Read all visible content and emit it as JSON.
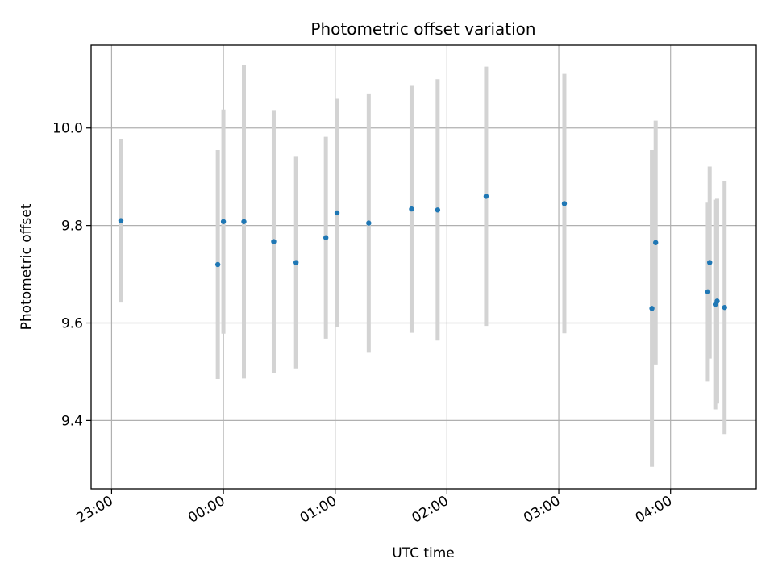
{
  "chart_data": {
    "type": "scatter",
    "title": "Photometric offset variation",
    "xlabel": "UTC time",
    "ylabel": "Photometric offset",
    "grid": true,
    "legend": "none",
    "x_ticks": [
      "23:00",
      "00:00",
      "01:00",
      "02:00",
      "03:00",
      "04:00"
    ],
    "y_ticks": [
      "9.4",
      "9.6",
      "9.8",
      "10.0"
    ],
    "xlim": [
      "22:49",
      "04:46"
    ],
    "ylim": [
      9.26,
      10.17
    ],
    "colors": {
      "point": "#1f77b4",
      "errorbar": "#d3d3d3",
      "grid": "#b0b0b0"
    },
    "series": [
      {
        "points": [
          {
            "t": "23:05",
            "y": 9.81,
            "err": 0.168
          },
          {
            "t": "23:57",
            "y": 9.72,
            "err": 0.235
          },
          {
            "t": "00:00",
            "y": 9.808,
            "err": 0.23
          },
          {
            "t": "00:11",
            "y": 9.808,
            "err": 0.322
          },
          {
            "t": "00:27",
            "y": 9.767,
            "err": 0.27
          },
          {
            "t": "00:39",
            "y": 9.724,
            "err": 0.217
          },
          {
            "t": "00:55",
            "y": 9.775,
            "err": 0.207
          },
          {
            "t": "01:01",
            "y": 9.826,
            "err": 0.234
          },
          {
            "t": "01:18",
            "y": 9.805,
            "err": 0.266
          },
          {
            "t": "01:41",
            "y": 9.834,
            "err": 0.254
          },
          {
            "t": "01:55",
            "y": 9.832,
            "err": 0.268
          },
          {
            "t": "02:21",
            "y": 9.86,
            "err": 0.266
          },
          {
            "t": "03:03",
            "y": 9.845,
            "err": 0.266
          },
          {
            "t": "03:50",
            "y": 9.63,
            "err": 0.325
          },
          {
            "t": "03:52",
            "y": 9.765,
            "err": 0.25
          },
          {
            "t": "04:20",
            "y": 9.664,
            "err": 0.183
          },
          {
            "t": "04:21",
            "y": 9.724,
            "err": 0.197
          },
          {
            "t": "04:24",
            "y": 9.638,
            "err": 0.215
          },
          {
            "t": "04:25",
            "y": 9.645,
            "err": 0.21
          },
          {
            "t": "04:29",
            "y": 9.632,
            "err": 0.26
          }
        ]
      }
    ]
  }
}
